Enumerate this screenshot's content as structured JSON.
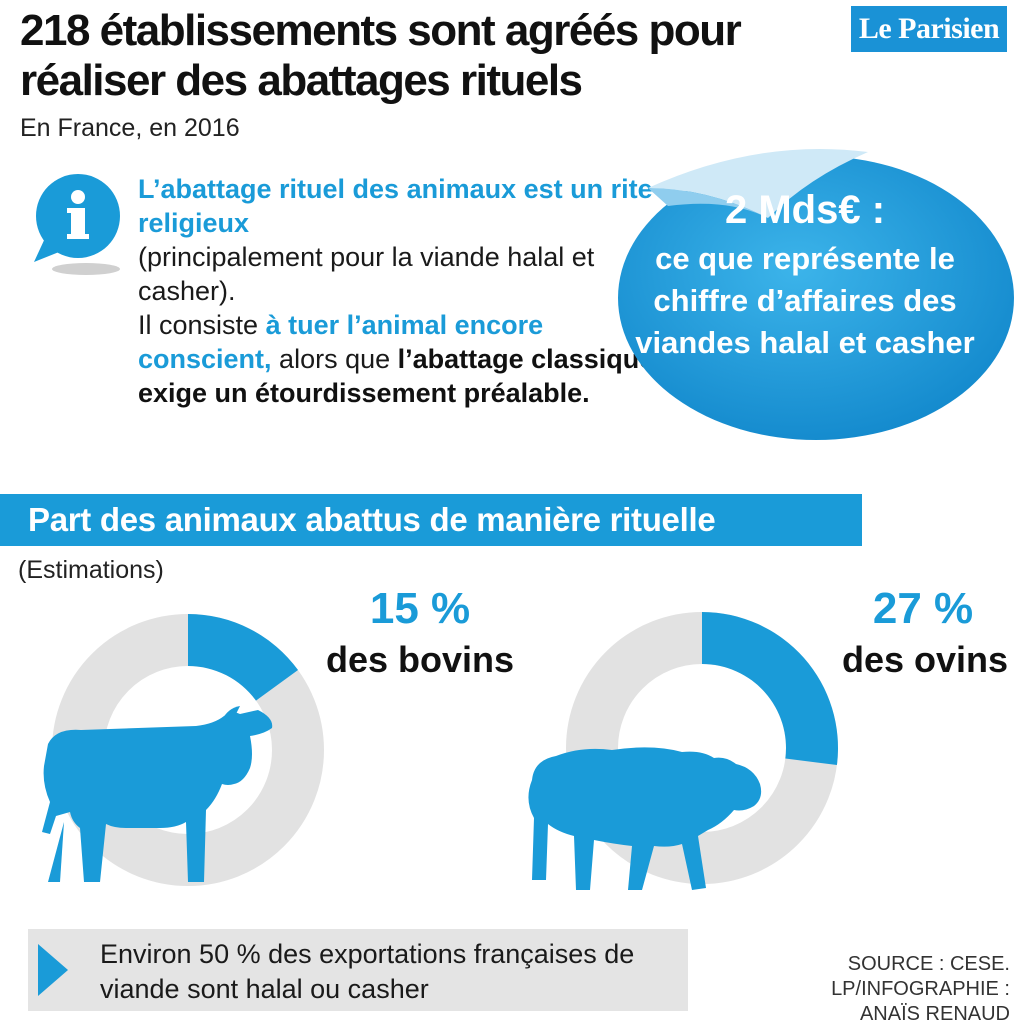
{
  "header": {
    "title": "218 établissements sont agréés pour réaliser des abattages rituels",
    "subtitle": "En France, en 2016",
    "logo": "Le Parisien"
  },
  "info": {
    "icon": "info-icon",
    "line1_blue": "L’abattage rituel des animaux est un rite religieux",
    "line2": "(principalement pour la viande halal et casher).",
    "line3_start": "Il consiste ",
    "line3_blue": "à tuer l’animal encore conscient,",
    "line3_mid": " alors que ",
    "line3_bold": "l’abattage classique exige un étourdissement préalable."
  },
  "badge": {
    "amount": "2 Mds€ :",
    "description": "ce que représente le chiffre d’affaires des viandes halal et casher"
  },
  "section": {
    "banner": "Part des animaux abattus de manière rituelle",
    "note": "(Estimations)"
  },
  "chart_data": [
    {
      "type": "pie",
      "categories": [
        "des bovins"
      ],
      "values": [
        15
      ],
      "value_label": "15 %",
      "label": "des bovins",
      "colors": {
        "share": "#1a9bd8",
        "rest": "#e2e2e2"
      },
      "icon": "cow-icon"
    },
    {
      "type": "pie",
      "categories": [
        "des ovins"
      ],
      "values": [
        27
      ],
      "value_label": "27 %",
      "label": "des ovins",
      "colors": {
        "share": "#1a9bd8",
        "rest": "#e2e2e2"
      },
      "icon": "sheep-icon"
    }
  ],
  "footer": {
    "text": "Environ 50 % des exportations françaises de viande sont halal ou casher",
    "source_line1": "SOURCE : CESE.",
    "source_line2": "LP/INFOGRAPHIE :",
    "source_line3": "ANAÏS RENAUD"
  },
  "colors": {
    "accent": "#1a9bd8",
    "grey": "#e2e2e2"
  }
}
